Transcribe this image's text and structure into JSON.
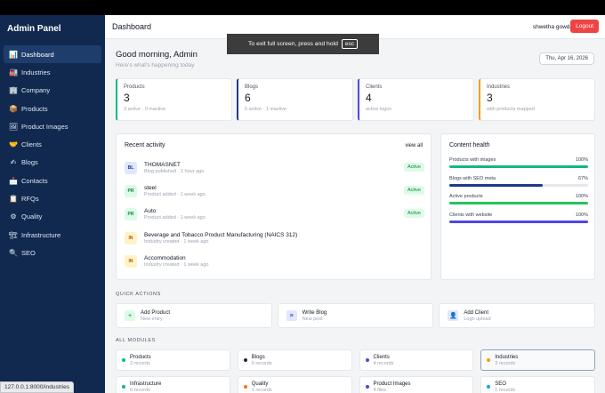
{
  "sidebar": {
    "brand": "Admin Panel",
    "items": [
      {
        "icon": "📊",
        "label": "Dashboard",
        "active": true
      },
      {
        "icon": "🏭",
        "label": "Industries"
      },
      {
        "icon": "🏢",
        "label": "Company"
      },
      {
        "icon": "📦",
        "label": "Products"
      },
      {
        "icon": "🖼",
        "label": "Product Images"
      },
      {
        "icon": "🤝",
        "label": "Clients"
      },
      {
        "icon": "✍",
        "label": "Blogs"
      },
      {
        "icon": "📩",
        "label": "Contacts"
      },
      {
        "icon": "📋",
        "label": "RFQs"
      },
      {
        "icon": "⚙",
        "label": "Quality"
      },
      {
        "icon": "🏗",
        "label": "Infrastructure"
      },
      {
        "icon": "🔍",
        "label": "SEO"
      }
    ]
  },
  "status_url": "127.0.0.1:8000/industries",
  "header": {
    "title": "Dashboard",
    "user": "shwetha gowda",
    "logout": "Logout"
  },
  "fullscreen_notice": {
    "text": "To exit full screen, press and hold",
    "key": "esc"
  },
  "greeting": {
    "title": "Good morning, Admin",
    "subtitle": "Here's what's happening today",
    "date": "Thu, Apr 16, 2026"
  },
  "stats": [
    {
      "label": "Products",
      "value": "3",
      "sub": "3 active · 0 inactive",
      "color": "#10b981"
    },
    {
      "label": "Blogs",
      "value": "6",
      "sub": "5 active · 1 inactive",
      "color": "#1e3a8a"
    },
    {
      "label": "Clients",
      "value": "4",
      "sub": "active logos",
      "color": "#4f46e5"
    },
    {
      "label": "Industries",
      "value": "3",
      "sub": "with products mapped",
      "color": "#f59e0b"
    }
  ],
  "activity": {
    "title": "Recent activity",
    "view_all": "view all",
    "rows": [
      {
        "abbr": "BL",
        "name": "THOMASNET",
        "meta": "Blog published · 1 hour ago",
        "badge": "Active",
        "tone": "blue"
      },
      {
        "abbr": "PR",
        "name": "steel",
        "meta": "Product added · 1 week ago",
        "badge": "Active",
        "tone": "green"
      },
      {
        "abbr": "PR",
        "name": "Auto",
        "meta": "Product added · 1 week ago",
        "badge": "Active",
        "tone": "green"
      },
      {
        "abbr": "IN",
        "name": "Beverage and Tobacco Product Manufacturing (NAICS 312)",
        "meta": "Industry created · 1 week ago",
        "badge": "",
        "tone": "amber"
      },
      {
        "abbr": "IN",
        "name": "Accommodation",
        "meta": "Industry created · 1 week ago",
        "badge": "",
        "tone": "amber"
      }
    ]
  },
  "health": {
    "title": "Content health",
    "rows": [
      {
        "label": "Products with images",
        "pct": "100%",
        "value": 1.0,
        "color": "#10b981"
      },
      {
        "label": "Blogs with SEO meta",
        "pct": "67%",
        "value": 0.67,
        "color": "#1e3a8a"
      },
      {
        "label": "Active products",
        "pct": "100%",
        "value": 1.0,
        "color": "#22c55e"
      },
      {
        "label": "Clients with website",
        "pct": "100%",
        "value": 1.0,
        "color": "#4f46e5"
      }
    ]
  },
  "quick_actions": {
    "label": "QUICK ACTIONS",
    "items": [
      {
        "icon": "+",
        "title": "Add Product",
        "sub": "New entry",
        "bg": "#dcfce7",
        "fg": "#15803d"
      },
      {
        "icon": "≡",
        "title": "Write Blog",
        "sub": "New post",
        "bg": "#e0e7ff",
        "fg": "#1e3a8a"
      },
      {
        "icon": "👤",
        "title": "Add Client",
        "sub": "Logo upload",
        "bg": "#e0e7ff",
        "fg": "#4f46e5"
      }
    ]
  },
  "modules": {
    "label": "ALL MODULES",
    "items": [
      {
        "title": "Products",
        "sub": "3 records",
        "dot": "#10b981"
      },
      {
        "title": "Blogs",
        "sub": "6 records",
        "dot": "#1e293b"
      },
      {
        "title": "Clients",
        "sub": "4 records",
        "dot": "#4f46e5"
      },
      {
        "title": "Industries",
        "sub": "3 records",
        "dot": "#f59e0b",
        "highlight": true
      },
      {
        "title": "Infrastructure",
        "sub": "0 records",
        "dot": "#10b981"
      },
      {
        "title": "Quality",
        "sub": "1 records",
        "dot": "#f97316"
      },
      {
        "title": "Product Images",
        "sub": "4 files",
        "dot": "#4f46e5"
      },
      {
        "title": "SEO",
        "sub": "1 records",
        "dot": "#0ea5e9"
      }
    ]
  }
}
